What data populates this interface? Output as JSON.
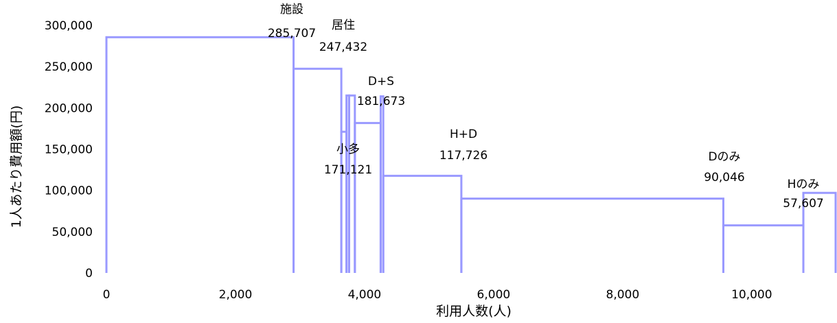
{
  "chart_data": {
    "type": "step",
    "xlabel": "利用人数(人)",
    "ylabel": "1人あたり費用額(円)",
    "xlim": [
      0,
      11300
    ],
    "ylim": [
      0,
      300000
    ],
    "x_ticks": [
      0,
      2000,
      4000,
      6000,
      8000,
      10000
    ],
    "x_tick_labels": [
      "0",
      "2,000",
      "4,000",
      "6,000",
      "8,000",
      "10,000"
    ],
    "y_ticks": [
      0,
      50000,
      100000,
      150000,
      200000,
      250000,
      300000
    ],
    "y_tick_labels": [
      "0",
      "50,000",
      "100,000",
      "150,000",
      "200,000",
      "250,000",
      "300,000"
    ],
    "color": "#9999ff",
    "grid": false,
    "legend": "none",
    "segments": [
      {
        "x0": 0,
        "x1": 2900,
        "value": 285707
      },
      {
        "x0": 2900,
        "x1": 3640,
        "value": 247432
      },
      {
        "x0": 3640,
        "x1": 3720,
        "value": 171121
      },
      {
        "x0": 3720,
        "x1": 3760,
        "value": 215000
      },
      {
        "x0": 3760,
        "x1": 3850,
        "value": 215000
      },
      {
        "x0": 3850,
        "x1": 4250,
        "value": 181673
      },
      {
        "x0": 4250,
        "x1": 4290,
        "value": 214000
      },
      {
        "x0": 4290,
        "x1": 5500,
        "value": 117726
      },
      {
        "x0": 5500,
        "x1": 9560,
        "value": 90046
      },
      {
        "x0": 9560,
        "x1": 10800,
        "value": 57607
      },
      {
        "x0": 10800,
        "x1": 11300,
        "value": 97000
      }
    ],
    "annotations": [
      {
        "name": "施設",
        "value": "285,707"
      },
      {
        "name": "居住",
        "value": "247,432"
      },
      {
        "name": "D+S",
        "value": "181,673"
      },
      {
        "name": "小多",
        "value": "171,121"
      },
      {
        "name": "H+D",
        "value": "117,726"
      },
      {
        "name": "Dのみ",
        "value": "90,046"
      },
      {
        "name": "Hのみ",
        "value": "57,607"
      }
    ]
  }
}
